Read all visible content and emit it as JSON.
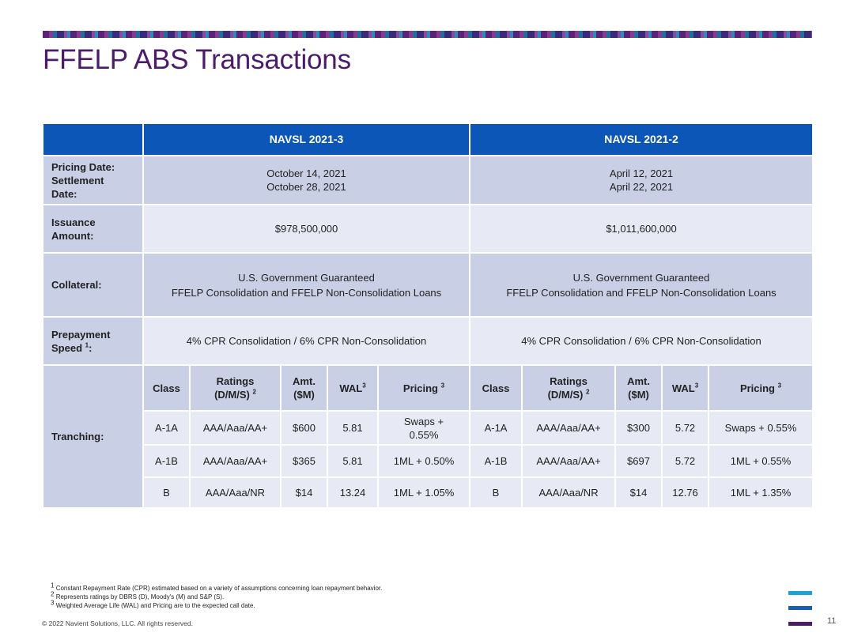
{
  "title": "FFELP ABS Transactions",
  "columns": [
    "NAVSL 2021-3",
    "NAVSL 2021-2"
  ],
  "rows": {
    "pricing": {
      "label_lines": [
        "Pricing Date:",
        "Settlement",
        "Date:"
      ],
      "values": [
        [
          "October 14, 2021",
          "October 28, 2021"
        ],
        [
          "April 12, 2021",
          "April 22, 2021"
        ]
      ]
    },
    "issuance": {
      "label_lines": [
        "Issuance",
        "Amount:"
      ],
      "values": [
        "$978,500,000",
        "$1,011,600,000"
      ]
    },
    "collateral": {
      "label": "Collateral:",
      "values": [
        [
          "U.S. Government Guaranteed",
          "FFELP Consolidation and FFELP Non-Consolidation Loans"
        ],
        [
          "U.S. Government Guaranteed",
          "FFELP Consolidation and FFELP Non-Consolidation Loans"
        ]
      ]
    },
    "prepayment": {
      "label_lines": [
        "Prepayment",
        "Speed"
      ],
      "label_sup": "1",
      "label_suffix": ":",
      "values": [
        "4% CPR Consolidation / 6% CPR Non-Consolidation",
        "4% CPR Consolidation / 6% CPR Non-Consolidation"
      ]
    },
    "tranching": {
      "label": "Tranching:",
      "headers": {
        "class": "Class",
        "ratings_line1": "Ratings",
        "ratings_line2": "(D/M/S)",
        "ratings_sup": "2",
        "amt_line1": "Amt.",
        "amt_line2": "($M)",
        "wal": "WAL",
        "wal_sup": "3",
        "pricing": "Pricing",
        "pricing_sup": "3"
      },
      "deal_2021_3": [
        {
          "class": "A-1A",
          "ratings": "AAA/Aaa/AA+",
          "amt": "$600",
          "wal": "5.81",
          "pricing": "Swaps +\n0.55%"
        },
        {
          "class": "A-1B",
          "ratings": "AAA/Aaa/AA+",
          "amt": "$365",
          "wal": "5.81",
          "pricing": "1ML + 0.50%"
        },
        {
          "class": "B",
          "ratings": "AAA/Aaa/NR",
          "amt": "$14",
          "wal": "13.24",
          "pricing": "1ML + 1.05%"
        }
      ],
      "deal_2021_2": [
        {
          "class": "A-1A",
          "ratings": "AAA/Aaa/AA+",
          "amt": "$300",
          "wal": "5.72",
          "pricing": "Swaps + 0.55%"
        },
        {
          "class": "A-1B",
          "ratings": "AAA/Aaa/AA+",
          "amt": "$697",
          "wal": "5.72",
          "pricing": "1ML + 0.55%"
        },
        {
          "class": "B",
          "ratings": "AAA/Aaa/NR",
          "amt": "$14",
          "wal": "12.76",
          "pricing": "1ML + 1.35%"
        }
      ]
    }
  },
  "footnotes": [
    {
      "mark": "1",
      "text": "Constant Repayment Rate (CPR) estimated based on a variety of assumptions concerning loan repayment behavior."
    },
    {
      "mark": "2",
      "text": "Represents ratings by DBRS (D), Moody's (M) and S&P (S)."
    },
    {
      "mark": "3",
      "text": "Weighted Average Life (WAL) and Pricing are to the expected call date."
    }
  ],
  "copyright": "© 2022 Navient Solutions, LLC. All rights reserved.",
  "page_number": "11",
  "colors": {
    "title": "#4b1c6b",
    "header_blue": "#0c56b8",
    "cell_dark": "#c9d0e6",
    "cell_light": "#e7eaf4",
    "logo_bars": [
      "#1aa3d9",
      "#1a5fae",
      "#4b1c6b"
    ]
  }
}
